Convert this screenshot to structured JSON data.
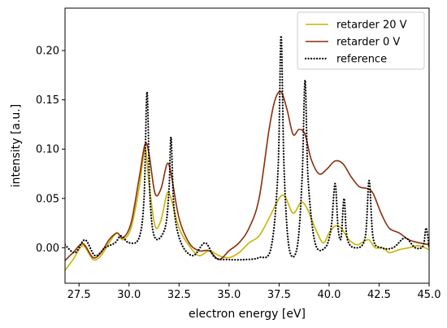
{
  "chart_data": {
    "type": "line",
    "title": "",
    "xlabel": "electron energy [eV]",
    "ylabel": "intensity [a.u.]",
    "xlim": [
      26.8,
      45.0
    ],
    "ylim": [
      -0.036,
      0.243
    ],
    "xticks": [
      27.5,
      30.0,
      32.5,
      35.0,
      37.5,
      40.0,
      42.5,
      45.0
    ],
    "xtick_labels": [
      "27.5",
      "30.0",
      "32.5",
      "35.0",
      "37.5",
      "40.0",
      "42.5",
      "45.0"
    ],
    "yticks": [
      0.0,
      0.05,
      0.1,
      0.15,
      0.2
    ],
    "ytick_labels": [
      "0.00",
      "0.05",
      "0.10",
      "0.15",
      "0.20"
    ],
    "grid": false,
    "legend_position": "top-right",
    "series": [
      {
        "name": "retarder 20 V",
        "color": "#c8b400",
        "style": "solid",
        "x": [
          26.8,
          27.2,
          27.7,
          28.2,
          28.6,
          29.0,
          29.4,
          29.7,
          30.1,
          30.5,
          30.8,
          31.0,
          31.3,
          31.6,
          31.9,
          32.1,
          32.5,
          33.0,
          33.5,
          34.0,
          34.5,
          35.0,
          35.5,
          36.0,
          36.5,
          37.0,
          37.5,
          37.8,
          38.2,
          38.6,
          38.9,
          39.3,
          39.7,
          40.0,
          40.3,
          40.6,
          41.0,
          41.4,
          41.7,
          42.0,
          42.3,
          42.7,
          43.0,
          43.5,
          44.0,
          44.5,
          45.0
        ],
        "y": [
          -0.023,
          -0.012,
          0.002,
          -0.012,
          -0.008,
          0.005,
          0.015,
          0.008,
          0.02,
          0.06,
          0.1,
          0.065,
          0.022,
          0.028,
          0.055,
          0.05,
          0.02,
          0.002,
          -0.008,
          -0.003,
          -0.008,
          -0.01,
          -0.005,
          0.005,
          0.012,
          0.03,
          0.05,
          0.052,
          0.035,
          0.046,
          0.04,
          0.02,
          0.005,
          0.015,
          0.022,
          0.02,
          0.008,
          0.003,
          0.006,
          0.008,
          0.0,
          0.0,
          -0.005,
          -0.002,
          0.0,
          0.002,
          -0.002
        ]
      },
      {
        "name": "retarder 0 V",
        "color": "#8b2e0b",
        "style": "solid",
        "x": [
          26.8,
          27.2,
          27.7,
          28.2,
          28.6,
          29.0,
          29.4,
          29.7,
          30.1,
          30.5,
          30.8,
          31.0,
          31.3,
          31.6,
          31.9,
          32.1,
          32.5,
          33.0,
          33.5,
          34.0,
          34.5,
          35.0,
          35.5,
          36.0,
          36.5,
          37.0,
          37.3,
          37.6,
          37.9,
          38.2,
          38.5,
          38.8,
          39.1,
          39.5,
          39.9,
          40.3,
          40.7,
          41.1,
          41.5,
          41.9,
          42.2,
          42.6,
          43.0,
          43.5,
          44.0,
          44.5,
          45.0
        ],
        "y": [
          -0.013,
          -0.005,
          0.004,
          -0.01,
          -0.005,
          0.008,
          0.015,
          0.01,
          0.025,
          0.07,
          0.105,
          0.095,
          0.055,
          0.06,
          0.085,
          0.075,
          0.03,
          0.005,
          -0.003,
          -0.003,
          -0.012,
          -0.003,
          0.005,
          0.02,
          0.05,
          0.12,
          0.15,
          0.158,
          0.14,
          0.115,
          0.12,
          0.115,
          0.09,
          0.075,
          0.08,
          0.088,
          0.085,
          0.072,
          0.062,
          0.06,
          0.055,
          0.035,
          0.02,
          0.015,
          0.008,
          0.005,
          0.003
        ]
      },
      {
        "name": "reference",
        "color": "#000000",
        "style": "dotted",
        "x": [
          26.8,
          27.3,
          27.8,
          28.3,
          28.8,
          29.3,
          29.6,
          30.0,
          30.5,
          30.75,
          30.9,
          31.05,
          31.3,
          31.8,
          32.0,
          32.1,
          32.25,
          32.6,
          33.2,
          33.8,
          34.3,
          35.0,
          35.8,
          36.5,
          37.1,
          37.45,
          37.6,
          37.75,
          38.0,
          38.4,
          38.65,
          38.8,
          38.95,
          39.3,
          39.8,
          40.1,
          40.3,
          40.45,
          40.6,
          40.75,
          40.9,
          41.3,
          41.8,
          42.0,
          42.2,
          42.6,
          43.2,
          43.8,
          44.3,
          44.7,
          44.85,
          45.0
        ],
        "y": [
          0.003,
          -0.005,
          0.008,
          -0.008,
          0.0,
          0.005,
          0.012,
          0.005,
          0.01,
          0.05,
          0.158,
          0.05,
          0.01,
          0.02,
          0.06,
          0.112,
          0.04,
          0.005,
          -0.008,
          0.005,
          -0.01,
          -0.012,
          -0.012,
          -0.01,
          0.0,
          0.08,
          0.215,
          0.08,
          0.0,
          0.0,
          0.07,
          0.17,
          0.07,
          0.005,
          0.0,
          0.02,
          0.065,
          0.02,
          0.01,
          0.05,
          0.01,
          0.0,
          0.01,
          0.068,
          0.01,
          0.0,
          0.0,
          0.01,
          0.0,
          0.002,
          0.02,
          0.0
        ]
      }
    ]
  }
}
